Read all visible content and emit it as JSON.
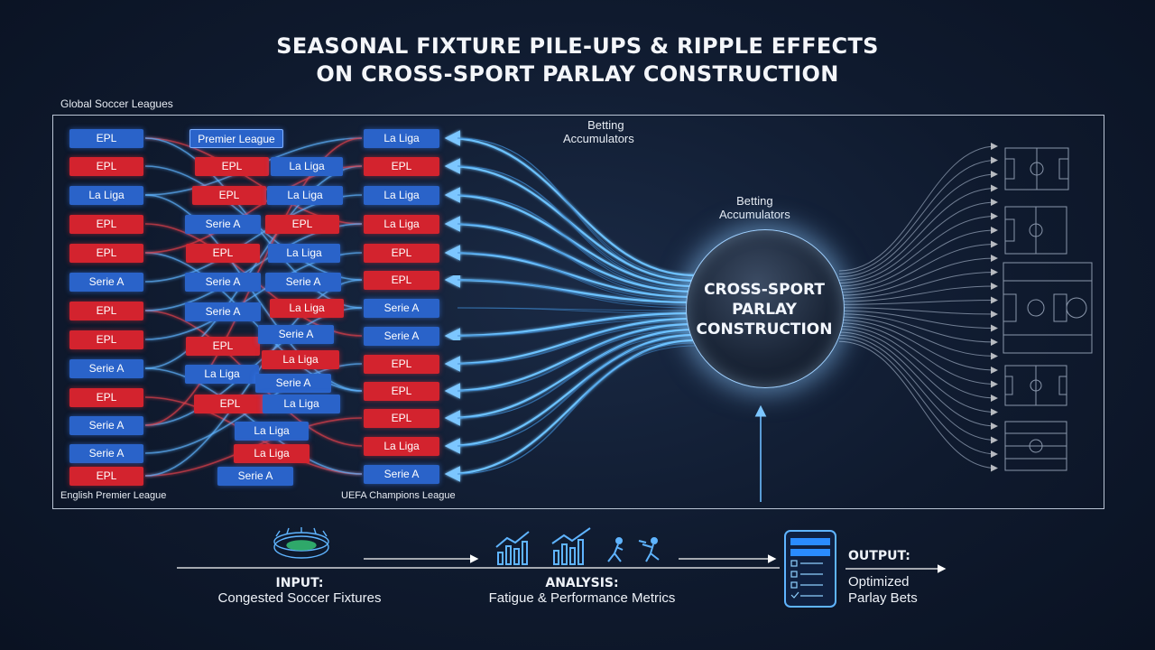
{
  "title": {
    "line1": "SEASONAL FIXTURE PILE-UPS & RIPPLE EFFECTS",
    "line2": "ON CROSS-SPORT PARLAY CONSTRUCTION"
  },
  "labels": {
    "global": "Global Soccer Leagues",
    "epl": "English Premier League",
    "ucl": "UEFA Champions League",
    "betting_top_1": "Betting",
    "betting_top_2": "Accumulators",
    "betting_hub_1": "Betting",
    "betting_hub_2": "Accumulators"
  },
  "hub": {
    "line1": "CROSS-SPORT",
    "line2": "PARLAY",
    "line3": "CONSTRUCTION"
  },
  "col1": [
    "EPL",
    "EPL",
    "La Liga",
    "EPL",
    "EPL",
    "Serie A",
    "EPL",
    "EPL",
    "Serie A",
    "EPL",
    "Serie A",
    "Serie A",
    "EPL"
  ],
  "col1_colors": [
    "blue",
    "red",
    "blue",
    "red",
    "red",
    "blue",
    "red",
    "red",
    "blue",
    "red",
    "blue",
    "blue",
    "red"
  ],
  "col2": [
    "Premier League",
    "EPL",
    "EPL",
    "Serie A",
    "EPL",
    "Serie A",
    "Serie A",
    "EPL",
    "La Liga",
    "EPL",
    "La Liga",
    "La Liga",
    "Serie A"
  ],
  "col2_colors": [
    "blue",
    "red",
    "red",
    "blue",
    "red",
    "blue",
    "blue",
    "red",
    "blue",
    "red",
    "blue",
    "red",
    "blue"
  ],
  "col3": [
    "La Liga",
    "La Liga",
    "EPL",
    "La Liga",
    "Serie A",
    "La Liga",
    "Serie A",
    "La Liga",
    "Serie A",
    "La Liga"
  ],
  "col3_colors": [
    "blue",
    "blue",
    "red",
    "blue",
    "blue",
    "red",
    "blue",
    "red",
    "blue",
    "blue"
  ],
  "col4": [
    "La Liga",
    "EPL",
    "La Liga",
    "La Liga",
    "EPL",
    "EPL",
    "Serie A",
    "Serie A",
    "EPL",
    "EPL",
    "EPL",
    "La Liga",
    "Serie A"
  ],
  "col4_colors": [
    "blue",
    "red",
    "blue",
    "red",
    "red",
    "red",
    "blue",
    "blue",
    "red",
    "red",
    "red",
    "red",
    "blue"
  ],
  "bottom": {
    "input_head": "INPUT:",
    "input_sub": "Congested Soccer Fixtures",
    "analysis_head": "ANALYSIS:",
    "analysis_sub": "Fatigue & Performance Metrics",
    "output_head": "OUTPUT:",
    "output_sub1": "Optimized",
    "output_sub2": "Parlay Bets"
  },
  "colors": {
    "red_chip": "#d3232e",
    "blue_chip": "#2a63c9",
    "flow": "#5fb4ff",
    "background": "#0f1a2e"
  },
  "icons": [
    "stadium-icon",
    "bar-chart-up-icon",
    "bar-chart-up-icon",
    "runner-icon",
    "player-kick-icon",
    "phone-betslip-icon"
  ]
}
